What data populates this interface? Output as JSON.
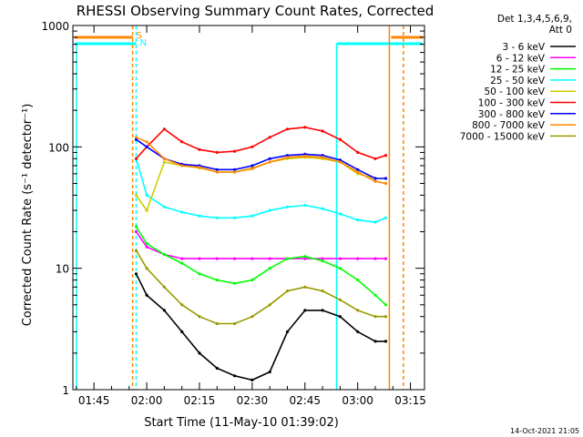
{
  "chart_data": {
    "type": "line",
    "title": "RHESSI Observing Summary Count Rates, Corrected",
    "xlabel": "Start Time (11-May-10 01:39:02)",
    "ylabel": "Corrected Count Rate (s⁻¹ detector⁻¹)",
    "yscale": "log",
    "ylim": [
      1,
      1000
    ],
    "xlim": [
      "01:39",
      "03:19"
    ],
    "x_tick_labels": [
      "01:45",
      "02:00",
      "02:15",
      "02:30",
      "02:45",
      "03:00",
      "03:15"
    ],
    "x_tick_values": [
      "01:45",
      "02:00",
      "02:15",
      "02:30",
      "02:45",
      "03:00",
      "03:15"
    ],
    "y_tick_labels": [
      "1",
      "10",
      "100",
      "1000"
    ],
    "y_tick_values": [
      1,
      10,
      100,
      1000
    ],
    "legend": {
      "position": "top-right",
      "header_lines": [
        "Det 1,3,4,5,6,9,",
        "Att 0"
      ]
    },
    "x": [
      "01:57",
      "02:00",
      "02:05",
      "02:10",
      "02:15",
      "02:20",
      "02:25",
      "02:30",
      "02:35",
      "02:40",
      "02:45",
      "02:50",
      "02:55",
      "03:00",
      "03:05",
      "03:08"
    ],
    "series": [
      {
        "name": "3 - 6 keV",
        "color": "#000000",
        "values": [
          9,
          6,
          4.5,
          3,
          2,
          1.5,
          1.3,
          1.2,
          1.4,
          3,
          4.5,
          4.5,
          4,
          3,
          2.5,
          2.5
        ]
      },
      {
        "name": "6 - 12 keV",
        "color": "#ff00ff",
        "values": [
          20,
          15,
          13,
          12,
          12,
          12,
          12,
          12,
          12,
          12,
          12,
          12,
          12,
          12,
          12,
          12
        ]
      },
      {
        "name": "12 - 25 keV",
        "color": "#00ff00",
        "values": [
          22,
          16,
          13,
          11,
          9,
          8,
          7.5,
          8,
          10,
          12,
          12.5,
          11.5,
          10,
          8,
          6,
          5
        ]
      },
      {
        "name": "25 - 50 keV",
        "color": "#00ffff",
        "values": [
          80,
          40,
          32,
          29,
          27,
          26,
          26,
          27,
          30,
          32,
          33,
          31,
          28,
          25,
          24,
          26
        ]
      },
      {
        "name": "50 - 100 keV",
        "color": "#cccc00",
        "values": [
          40,
          30,
          75,
          70,
          67,
          62,
          62,
          67,
          75,
          80,
          82,
          80,
          75,
          60,
          55,
          55
        ]
      },
      {
        "name": "100 - 300 keV",
        "color": "#ff0000",
        "values": [
          80,
          100,
          140,
          110,
          95,
          90,
          92,
          100,
          120,
          140,
          145,
          135,
          115,
          90,
          80,
          85
        ]
      },
      {
        "name": "300 - 800 keV",
        "color": "#0000ff",
        "values": [
          115,
          100,
          80,
          72,
          70,
          65,
          65,
          70,
          80,
          85,
          87,
          85,
          78,
          65,
          55,
          55
        ]
      },
      {
        "name": "800 - 7000 keV",
        "color": "#ff8800",
        "values": [
          120,
          110,
          80,
          70,
          68,
          62,
          62,
          66,
          75,
          82,
          84,
          82,
          75,
          62,
          52,
          50
        ]
      },
      {
        "name": "7000 - 15000 keV",
        "color": "#999900",
        "values": [
          14,
          10,
          7,
          5,
          4,
          3.5,
          3.5,
          4,
          5,
          6.5,
          7,
          6.5,
          5.5,
          4.5,
          4,
          4
        ]
      }
    ],
    "attenuator_markers": [
      {
        "label": "S",
        "color": "#ff8800"
      },
      {
        "label": "N",
        "color": "#00ffff"
      }
    ]
  },
  "footer": {
    "timestamp": "14-Oct-2021 21:05"
  }
}
